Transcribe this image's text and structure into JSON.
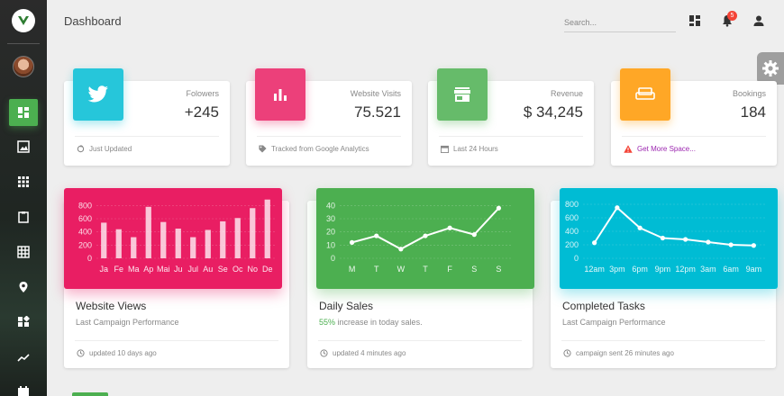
{
  "header": {
    "title": "Dashboard",
    "search_placeholder": "Search...",
    "notifications_count": "5"
  },
  "sidebar": {
    "items": [
      {
        "icon": "dashboard-icon",
        "active": true
      },
      {
        "icon": "image-icon"
      },
      {
        "icon": "apps-icon"
      },
      {
        "icon": "clipboard-icon"
      },
      {
        "icon": "grid-icon"
      },
      {
        "icon": "location-icon"
      },
      {
        "icon": "widgets-icon"
      },
      {
        "icon": "trending-icon"
      },
      {
        "icon": "calendar-icon"
      }
    ]
  },
  "stats": [
    {
      "label": "Folowers",
      "value": "+245",
      "footer": "Just Updated",
      "color": "#26c6da",
      "icon": "twitter-icon",
      "footer_icon": "refresh-icon"
    },
    {
      "label": "Website Visits",
      "value": "75.521",
      "footer": "Tracked from Google Analytics",
      "color": "#ec407a",
      "icon": "bar-chart-icon",
      "footer_icon": "tag-icon"
    },
    {
      "label": "Revenue",
      "value": "$ 34,245",
      "footer": "Last 24 Hours",
      "color": "#66bb6a",
      "icon": "store-icon",
      "footer_icon": "calendar-icon"
    },
    {
      "label": "Bookings",
      "value": "184",
      "footer": "Get More Space...",
      "color": "#ffa726",
      "icon": "sofa-icon",
      "footer_icon": "warning-icon"
    }
  ],
  "charts": [
    {
      "title": "Website Views",
      "subtitle": "Last Campaign Performance",
      "footer": "updated 10 days ago",
      "color": "#e91e63"
    },
    {
      "title": "Daily Sales",
      "subtitle_pct": "55%",
      "subtitle_rest": " increase in today sales.",
      "footer": "updated 4 minutes ago",
      "color": "#4caf50"
    },
    {
      "title": "Completed Tasks",
      "subtitle": "Last Campaign Performance",
      "footer": "campaign sent 26 minutes ago",
      "color": "#00bcd4"
    }
  ],
  "chart_data": [
    {
      "type": "bar",
      "categories": [
        "Ja",
        "Fe",
        "Ma",
        "Ap",
        "Mai",
        "Ju",
        "Jul",
        "Au",
        "Se",
        "Oc",
        "No",
        "De"
      ],
      "values": [
        540,
        440,
        320,
        780,
        550,
        450,
        320,
        430,
        560,
        610,
        760,
        890
      ],
      "yticks": [
        "800",
        "600",
        "400",
        "200",
        "0"
      ],
      "ylim": [
        0,
        900
      ]
    },
    {
      "type": "line",
      "categories": [
        "M",
        "T",
        "W",
        "T",
        "F",
        "S",
        "S"
      ],
      "values": [
        12,
        17,
        7,
        17,
        23,
        18,
        38
      ],
      "yticks": [
        "40",
        "30",
        "20",
        "10",
        "0"
      ],
      "ylim": [
        0,
        45
      ]
    },
    {
      "type": "line",
      "categories": [
        "12am",
        "3pm",
        "6pm",
        "9pm",
        "12pm",
        "3am",
        "6am",
        "9am"
      ],
      "values": [
        230,
        750,
        450,
        300,
        280,
        240,
        200,
        190
      ],
      "yticks": [
        "800",
        "600",
        "400",
        "200",
        "0"
      ],
      "ylim": [
        0,
        880
      ]
    }
  ]
}
